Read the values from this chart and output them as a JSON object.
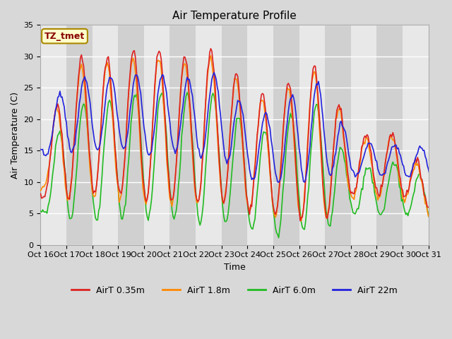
{
  "title": "Air Temperature Profile",
  "xlabel": "Time",
  "ylabel": "Air Temperature (C)",
  "ylim": [
    0,
    35
  ],
  "x_tick_labels": [
    "Oct 16",
    "Oct 17",
    "Oct 18",
    "Oct 19",
    "Oct 20",
    "Oct 21",
    "Oct 22",
    "Oct 23",
    "Oct 24",
    "Oct 25",
    "Oct 26",
    "Oct 27",
    "Oct 28",
    "Oct 29",
    "Oct 30",
    "Oct 31"
  ],
  "series_colors": {
    "AirT 0.35m": "#dd2222",
    "AirT 1.8m": "#ff8800",
    "AirT 6.0m": "#22bb22",
    "AirT 22m": "#2222dd"
  },
  "annotation_text": "TZ_tmet",
  "annotation_color": "#880000",
  "annotation_bg": "#ffffcc",
  "annotation_border": "#aa8800",
  "fig_bg": "#d8d8d8",
  "plot_bg_light": "#e8e8e8",
  "plot_bg_dark": "#d0d0d0",
  "grid_color": "#ffffff",
  "title_fontsize": 11,
  "label_fontsize": 9,
  "tick_fontsize": 8,
  "linewidth": 1.2
}
